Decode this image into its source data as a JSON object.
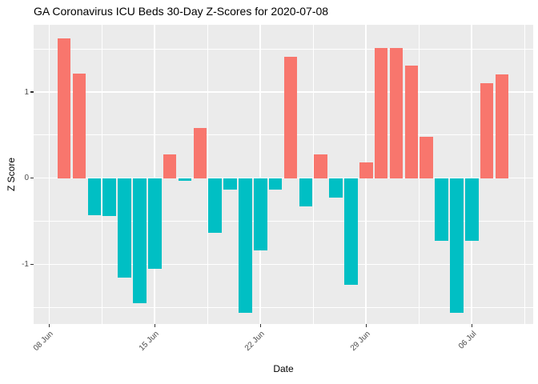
{
  "colors": {
    "bar_positive": "#F8766D",
    "bar_negative": "#00BFC4",
    "panel_background": "#EBEBEB",
    "gridline": "#FFFFFF",
    "axis_text": "#4D4D4D",
    "tick_mark": "#333333",
    "title_text": "#000000"
  },
  "chart_data": {
    "type": "bar",
    "title": "GA Coronavirus ICU Beds 30-Day Z-Scores for 2020-07-08",
    "xlabel": "Date",
    "ylabel": "Z Score",
    "x": [
      "2020-06-09",
      "2020-06-10",
      "2020-06-11",
      "2020-06-12",
      "2020-06-13",
      "2020-06-14",
      "2020-06-15",
      "2020-06-16",
      "2020-06-17",
      "2020-06-18",
      "2020-06-19",
      "2020-06-20",
      "2020-06-21",
      "2020-06-22",
      "2020-06-23",
      "2020-06-24",
      "2020-06-25",
      "2020-06-26",
      "2020-06-27",
      "2020-06-28",
      "2020-06-29",
      "2020-06-30",
      "2020-07-01",
      "2020-07-02",
      "2020-07-03",
      "2020-07-04",
      "2020-07-05",
      "2020-07-06",
      "2020-07-07",
      "2020-07-08"
    ],
    "values": [
      1.62,
      1.21,
      -0.43,
      -0.44,
      -1.15,
      -1.45,
      -1.05,
      0.28,
      -0.03,
      0.58,
      -0.63,
      -0.13,
      -1.56,
      -0.84,
      -0.13,
      1.41,
      -0.33,
      0.28,
      -0.23,
      -1.24,
      0.18,
      1.51,
      1.51,
      1.31,
      0.48,
      -0.73,
      -1.56,
      -0.73,
      1.1,
      1.2
    ],
    "x_ticks": [
      {
        "label": "08 Jun",
        "date": "2020-06-08"
      },
      {
        "label": "15 Jun",
        "date": "2020-06-15"
      },
      {
        "label": "22 Jun",
        "date": "2020-06-22"
      },
      {
        "label": "29 Jun",
        "date": "2020-06-29"
      },
      {
        "label": "06 Jul",
        "date": "2020-07-06"
      }
    ],
    "y_ticks": [
      {
        "label": "-1",
        "value": -1
      },
      {
        "label": "0",
        "value": 0
      },
      {
        "label": "1",
        "value": 1
      }
    ],
    "ylim": [
      -1.73,
      1.78
    ],
    "grid": "white major and minor gridlines on gray panel",
    "legend": "none",
    "color_rule": "positive bars salmon, negative bars teal"
  }
}
